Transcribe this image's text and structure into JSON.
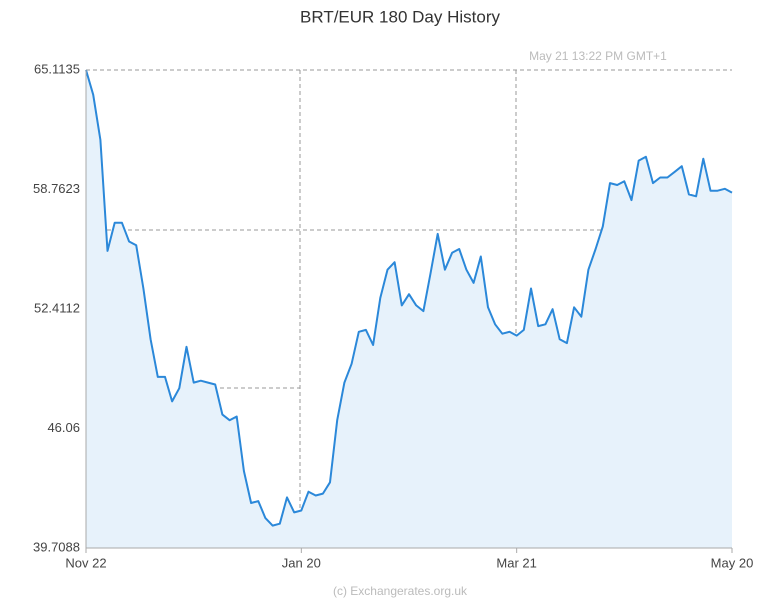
{
  "chart_data": {
    "type": "line",
    "title": "BRT/EUR  180 Day History",
    "annotation": "May 21  13:22 PM GMT+1",
    "footer": "(c) Exchangerates.org.uk",
    "categories": [
      "Nov 22",
      null,
      null,
      null,
      null,
      null,
      null,
      null,
      null,
      null,
      null,
      null,
      null,
      null,
      null,
      null,
      null,
      null,
      null,
      null,
      null,
      null,
      null,
      null,
      null,
      null,
      null,
      null,
      null,
      null,
      "Jan 20",
      null,
      null,
      null,
      null,
      null,
      null,
      null,
      null,
      null,
      null,
      null,
      null,
      null,
      null,
      null,
      null,
      null,
      null,
      null,
      null,
      null,
      null,
      null,
      null,
      null,
      null,
      null,
      null,
      null,
      "Mar 21",
      null,
      null,
      null,
      null,
      null,
      null,
      null,
      null,
      null,
      null,
      null,
      null,
      null,
      null,
      null,
      null,
      null,
      null,
      null,
      null,
      null,
      null,
      null,
      null,
      null,
      null,
      null,
      null,
      null,
      "May 20"
    ],
    "values": [
      65.1135,
      63.8,
      61.4,
      55.5,
      57.0,
      57.0,
      56.0,
      55.8,
      53.5,
      50.8,
      48.8,
      48.8,
      47.5,
      48.2,
      50.4,
      48.5,
      48.6,
      48.5,
      48.4,
      46.8,
      46.5,
      46.7,
      43.8,
      42.1,
      42.2,
      41.3,
      40.9,
      41.0,
      42.4,
      41.6,
      41.7,
      42.7,
      42.5,
      42.6,
      43.2,
      46.5,
      48.5,
      49.5,
      51.2,
      51.3,
      50.5,
      53.0,
      54.5,
      54.9,
      52.6,
      53.2,
      52.6,
      52.3,
      54.3,
      56.4,
      54.5,
      55.4,
      55.6,
      54.5,
      53.8,
      55.2,
      52.5,
      51.6,
      51.1,
      51.2,
      51.0,
      51.3,
      53.5,
      51.5,
      51.6,
      52.4,
      50.8,
      50.6,
      52.5,
      52.0,
      54.5,
      55.6,
      56.8,
      59.1,
      59.0,
      59.2,
      58.2,
      60.3,
      60.5,
      59.1,
      59.4,
      59.4,
      59.7,
      60.0,
      58.5,
      58.4,
      60.4,
      58.7,
      58.7,
      58.8,
      58.6
    ],
    "color": "#2b88d9",
    "fill": "#e7f2fb",
    "ylim": [
      39.7088,
      65.1135
    ],
    "yticks": [
      39.7088,
      46.06,
      52.4112,
      58.7623,
      65.1135
    ]
  }
}
